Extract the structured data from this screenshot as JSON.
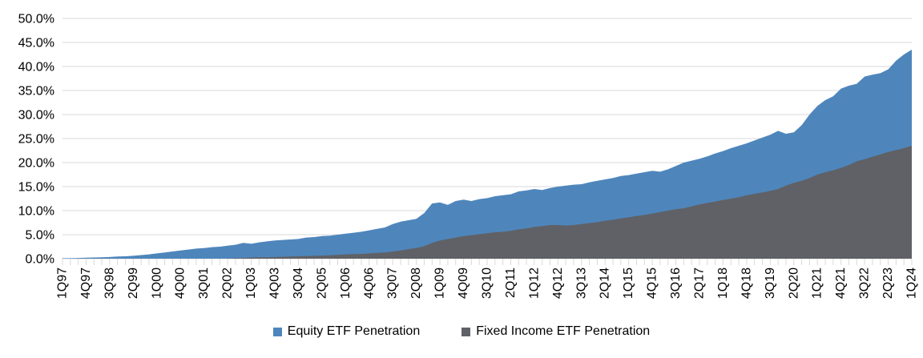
{
  "chart_data": {
    "type": "area",
    "mode": "overlapping",
    "title": "",
    "xlabel": "",
    "ylabel": "",
    "ylim": [
      0,
      50
    ],
    "grid": "horizontal",
    "legend_position": "bottom",
    "y_tick_labels": [
      "0.0%",
      "5.0%",
      "10.0%",
      "15.0%",
      "20.0%",
      "25.0%",
      "30.0%",
      "35.0%",
      "40.0%",
      "45.0%",
      "50.0%"
    ],
    "x_tick_labels": [
      "1Q97",
      "4Q97",
      "3Q98",
      "2Q99",
      "1Q00",
      "4Q00",
      "3Q01",
      "2Q02",
      "1Q03",
      "4Q03",
      "3Q04",
      "2Q05",
      "1Q06",
      "4Q06",
      "3Q07",
      "2Q08",
      "1Q09",
      "4Q09",
      "3Q10",
      "2Q11",
      "1Q12",
      "4Q12",
      "3Q13",
      "2Q14",
      "1Q15",
      "4Q15",
      "3Q16",
      "2Q17",
      "1Q18",
      "4Q18",
      "3Q19",
      "2Q20",
      "1Q21",
      "4Q21",
      "3Q22",
      "2Q23",
      "1Q24"
    ],
    "x_label_every": 3,
    "n_points": 109,
    "gridline_color": "#D9D9D9",
    "tick_color": "#D9D9D9",
    "series": [
      {
        "name": "Equity ETF Penetration",
        "color": "#4E86BC",
        "values": [
          0.1,
          0.1,
          0.15,
          0.2,
          0.25,
          0.3,
          0.35,
          0.45,
          0.5,
          0.6,
          0.75,
          0.9,
          1.1,
          1.3,
          1.5,
          1.7,
          1.9,
          2.1,
          2.2,
          2.4,
          2.5,
          2.7,
          2.9,
          3.3,
          3.1,
          3.4,
          3.6,
          3.8,
          3.9,
          4.0,
          4.1,
          4.4,
          4.5,
          4.7,
          4.8,
          5.0,
          5.2,
          5.4,
          5.6,
          5.9,
          6.2,
          6.5,
          7.2,
          7.7,
          8.0,
          8.3,
          9.5,
          11.5,
          11.7,
          11.2,
          12.0,
          12.3,
          12.0,
          12.4,
          12.6,
          13.0,
          13.2,
          13.4,
          14.0,
          14.2,
          14.5,
          14.3,
          14.7,
          15.0,
          15.2,
          15.4,
          15.5,
          15.9,
          16.2,
          16.5,
          16.8,
          17.2,
          17.4,
          17.7,
          18.0,
          18.3,
          18.1,
          18.6,
          19.3,
          20.0,
          20.4,
          20.8,
          21.3,
          21.9,
          22.4,
          23.0,
          23.5,
          24.0,
          24.6,
          25.2,
          25.8,
          26.6,
          26.0,
          26.3,
          27.8,
          30.0,
          31.8,
          33.0,
          33.8,
          35.4,
          36.0,
          36.4,
          37.9,
          38.3,
          38.6,
          39.4,
          41.2,
          42.5,
          43.5
        ]
      },
      {
        "name": "Fixed Income ETF Penetration",
        "color": "#606166",
        "values": [
          0,
          0,
          0,
          0,
          0,
          0,
          0,
          0,
          0,
          0,
          0,
          0,
          0,
          0,
          0,
          0,
          0,
          0,
          0,
          0,
          0,
          0,
          0.1,
          0.15,
          0.25,
          0.3,
          0.3,
          0.35,
          0.4,
          0.45,
          0.5,
          0.55,
          0.6,
          0.65,
          0.7,
          0.8,
          0.9,
          0.95,
          1.0,
          1.1,
          1.2,
          1.3,
          1.5,
          1.7,
          2.0,
          2.2,
          2.6,
          3.3,
          3.8,
          4.1,
          4.4,
          4.7,
          4.9,
          5.1,
          5.3,
          5.5,
          5.6,
          5.8,
          6.1,
          6.3,
          6.6,
          6.8,
          7.0,
          7.0,
          6.9,
          7.0,
          7.2,
          7.4,
          7.6,
          7.9,
          8.1,
          8.4,
          8.6,
          8.9,
          9.1,
          9.4,
          9.7,
          10.0,
          10.3,
          10.5,
          10.9,
          11.3,
          11.6,
          11.9,
          12.2,
          12.5,
          12.8,
          13.2,
          13.5,
          13.8,
          14.1,
          14.5,
          15.2,
          15.8,
          16.2,
          16.8,
          17.5,
          18.0,
          18.4,
          18.9,
          19.5,
          20.3,
          20.7,
          21.2,
          21.7,
          22.2,
          22.6,
          23.0,
          23.5
        ]
      }
    ]
  }
}
